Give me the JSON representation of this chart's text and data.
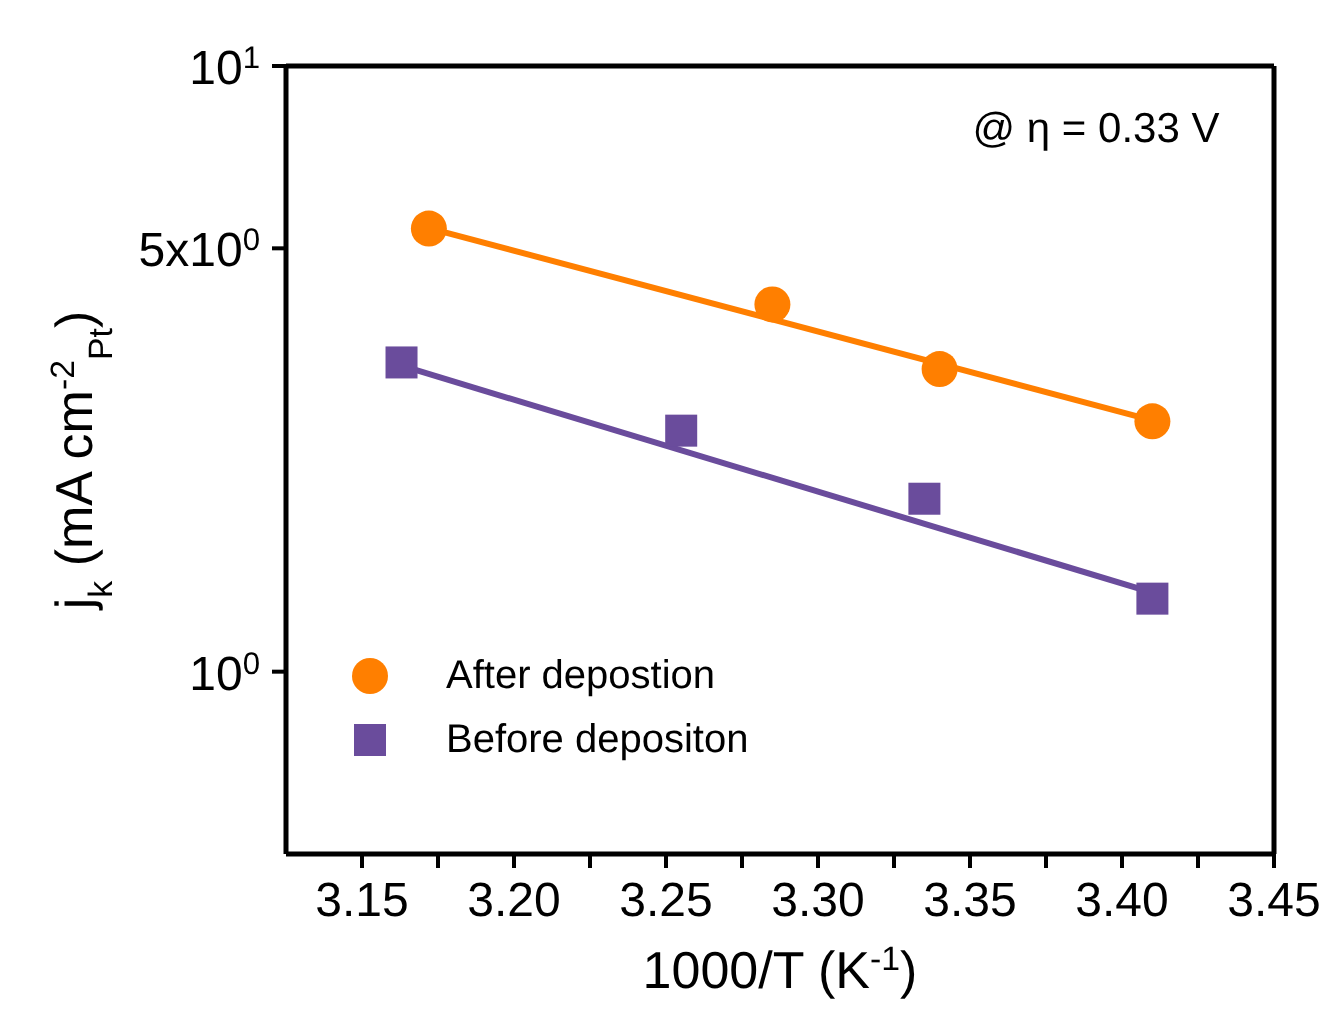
{
  "chart_data": {
    "type": "scatter",
    "xlabel": "1000/T (K$^{-1}$)",
    "ylabel": "j$_{k}$ (mA cm$^{-2}$$_{Pt}$)",
    "log": "y",
    "grid": false,
    "legend": "bottom left",
    "xlim": [
      3.125,
      3.45
    ],
    "xticks": [
      3.15,
      {
        "value": 3.175,
        "label": null
      },
      "3.20",
      {
        "value": 3.225,
        "label": null
      },
      3.25,
      {
        "value": 3.275,
        "label": null
      },
      "3.30",
      {
        "value": 3.325,
        "label": null
      },
      3.35,
      {
        "value": 3.375,
        "label": null
      },
      "3.40",
      {
        "value": 3.425,
        "label": null
      },
      3.45
    ],
    "ylim": [
      0.5,
      10
    ],
    "yticks": [
      {
        "value": 1,
        "label": "10$^{0}$"
      },
      {
        "value": 5,
        "label": "5x10$^{0}$"
      },
      {
        "value": 10,
        "label": "10$^{1}$"
      }
    ],
    "annotations": [
      "@ η = 0.33 V"
    ],
    "series": [
      {
        "name": "After depostion",
        "type": "scatter",
        "marker": "circle",
        "color": "#ff7f00",
        "x": [
          3.172,
          3.285,
          3.34,
          3.41
        ],
        "values": [
          5.39,
          4.04,
          3.16,
          2.59
        ]
      },
      {
        "name": "Before depositon",
        "type": "scatter",
        "marker": "square",
        "color": "#6a4c9c",
        "x": [
          3.163,
          3.255,
          3.335,
          3.41
        ],
        "values": [
          3.24,
          2.5,
          1.93,
          1.32
        ]
      },
      {
        "type": "line",
        "marker": "none",
        "color": "#ff7f00",
        "x": [
          3.172,
          3.41
        ],
        "values": [
          5.4,
          2.6
        ]
      },
      {
        "type": "line",
        "marker": "none",
        "color": "#6a4c9c",
        "x": [
          3.163,
          3.41
        ],
        "values": [
          3.2,
          1.35
        ]
      }
    ]
  }
}
